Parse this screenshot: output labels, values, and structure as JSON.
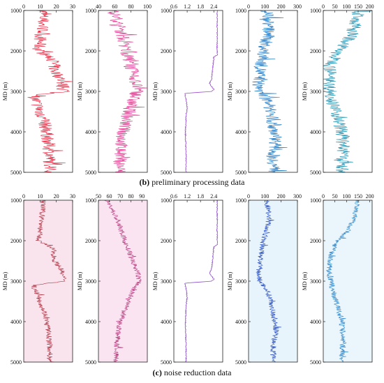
{
  "captions": [
    {
      "letter": "(b)",
      "text": " preliminary processing data"
    },
    {
      "letter": "(c)",
      "text": " noise reduction data"
    }
  ],
  "y_axis_label": "MD (m)",
  "chart_data": [
    {
      "group": "b",
      "type": "line",
      "y_ticks": [
        1000,
        2000,
        3000,
        4000,
        5000
      ],
      "ylim": [
        1000,
        5000
      ],
      "panels": [
        {
          "color": "#e8253f",
          "fill": "#ffffff",
          "x_ticks": [
            0,
            10,
            20,
            30
          ],
          "xlim": [
            0,
            30
          ],
          "trend": [
            [
              1000,
              12
            ],
            [
              1500,
              11
            ],
            [
              2000,
              9
            ],
            [
              2200,
              18
            ],
            [
              2500,
              19
            ],
            [
              2600,
              21
            ],
            [
              2700,
              23
            ],
            [
              2900,
              24
            ],
            [
              3000,
              26
            ],
            [
              3100,
              6
            ],
            [
              3400,
              9
            ],
            [
              3800,
              13
            ],
            [
              4200,
              15
            ],
            [
              4600,
              16
            ],
            [
              5000,
              16
            ]
          ]
        },
        {
          "color": "#e0388f",
          "fill": "#ffffff",
          "x_ticks": [
            40,
            60,
            80,
            100
          ],
          "xlim": [
            40,
            100
          ],
          "trend": [
            [
              1000,
              58
            ],
            [
              1300,
              64
            ],
            [
              1600,
              69
            ],
            [
              2000,
              74
            ],
            [
              2400,
              80
            ],
            [
              2800,
              86
            ],
            [
              3000,
              88
            ],
            [
              3200,
              82
            ],
            [
              3600,
              76
            ],
            [
              4000,
              70
            ],
            [
              4500,
              67
            ],
            [
              5000,
              66
            ]
          ]
        },
        {
          "color": "#9b4fcf",
          "fill": "#ffffff",
          "x_ticks": [
            0.6,
            1.2,
            1.8,
            2.4
          ],
          "xlim": [
            0.6,
            2.8
          ],
          "trend": [
            [
              1000,
              2.55
            ],
            [
              2100,
              2.55
            ],
            [
              2150,
              2.4
            ],
            [
              2700,
              2.3
            ],
            [
              2800,
              2.2
            ],
            [
              2950,
              2.4
            ],
            [
              3000,
              2.3
            ],
            [
              3050,
              1.1
            ],
            [
              3200,
              1.15
            ],
            [
              3400,
              1.2
            ],
            [
              3600,
              1.15
            ],
            [
              4000,
              1.12
            ],
            [
              4600,
              1.15
            ],
            [
              5000,
              1.15
            ]
          ]
        },
        {
          "color": "#1f79c4",
          "fill": "#ffffff",
          "x_ticks": [
            0,
            100,
            200,
            300
          ],
          "xlim": [
            0,
            300
          ],
          "trend": [
            [
              1000,
              110
            ],
            [
              1300,
              125
            ],
            [
              1600,
              120
            ],
            [
              2000,
              90
            ],
            [
              2400,
              75
            ],
            [
              2800,
              60
            ],
            [
              3000,
              70
            ],
            [
              3200,
              110
            ],
            [
              3500,
              140
            ],
            [
              3800,
              150
            ],
            [
              4200,
              170
            ],
            [
              4600,
              150
            ],
            [
              5000,
              160
            ]
          ]
        },
        {
          "color": "#1f93b3",
          "fill": "#ffffff",
          "x_ticks": [
            0,
            50,
            100,
            150,
            200
          ],
          "xlim": [
            0,
            210
          ],
          "trend": [
            [
              1000,
              150
            ],
            [
              1300,
              140
            ],
            [
              1600,
              120
            ],
            [
              1800,
              100
            ],
            [
              2000,
              60
            ],
            [
              2400,
              30
            ],
            [
              2800,
              25
            ],
            [
              3200,
              40
            ],
            [
              3600,
              60
            ],
            [
              4000,
              80
            ],
            [
              4500,
              85
            ],
            [
              5000,
              80
            ]
          ]
        }
      ]
    },
    {
      "group": "c",
      "type": "line",
      "y_ticks": [
        1000,
        2000,
        3000,
        4000,
        5000
      ],
      "ylim": [
        1000,
        5000
      ],
      "panels": [
        {
          "color": "#b03848",
          "fill": "#f9e4ee",
          "x_ticks": [
            0,
            10,
            20,
            30
          ],
          "xlim": [
            0,
            30
          ],
          "trend": [
            [
              1000,
              12
            ],
            [
              1500,
              11
            ],
            [
              2000,
              9
            ],
            [
              2200,
              18
            ],
            [
              2500,
              19
            ],
            [
              2600,
              21
            ],
            [
              2700,
              23
            ],
            [
              2900,
              24
            ],
            [
              3000,
              26
            ],
            [
              3100,
              6
            ],
            [
              3400,
              9
            ],
            [
              3800,
              13
            ],
            [
              4200,
              15
            ],
            [
              4600,
              16
            ],
            [
              5000,
              16
            ]
          ]
        },
        {
          "color": "#b83d7f",
          "fill": "#fae4f2",
          "x_ticks": [
            50,
            60,
            70,
            80,
            90
          ],
          "xlim": [
            50,
            95
          ],
          "trend": [
            [
              1000,
              58
            ],
            [
              1300,
              64
            ],
            [
              1600,
              69
            ],
            [
              2000,
              74
            ],
            [
              2400,
              80
            ],
            [
              2800,
              86
            ],
            [
              3000,
              88
            ],
            [
              3200,
              82
            ],
            [
              3600,
              76
            ],
            [
              4000,
              70
            ],
            [
              4500,
              67
            ],
            [
              5000,
              66
            ]
          ]
        },
        {
          "color": "#8a4fc4",
          "fill": "#ffffff",
          "x_ticks": [
            0.6,
            1.2,
            1.8,
            2.4
          ],
          "xlim": [
            0.6,
            2.8
          ],
          "trend": [
            [
              1000,
              2.55
            ],
            [
              2100,
              2.55
            ],
            [
              2150,
              2.4
            ],
            [
              2700,
              2.3
            ],
            [
              2800,
              2.2
            ],
            [
              2950,
              2.4
            ],
            [
              3000,
              2.3
            ],
            [
              3050,
              1.1
            ],
            [
              3200,
              1.15
            ],
            [
              3400,
              1.2
            ],
            [
              3600,
              1.15
            ],
            [
              4000,
              1.12
            ],
            [
              4600,
              1.15
            ],
            [
              5000,
              1.15
            ]
          ]
        },
        {
          "color": "#2a4fc2",
          "fill": "#e8f4fb",
          "x_ticks": [
            0,
            100,
            200,
            300
          ],
          "xlim": [
            0,
            300
          ],
          "trend": [
            [
              1000,
              110
            ],
            [
              1300,
              125
            ],
            [
              1600,
              120
            ],
            [
              2000,
              90
            ],
            [
              2400,
              75
            ],
            [
              2800,
              60
            ],
            [
              3000,
              70
            ],
            [
              3200,
              110
            ],
            [
              3500,
              140
            ],
            [
              3800,
              150
            ],
            [
              4200,
              170
            ],
            [
              4600,
              150
            ],
            [
              5000,
              160
            ]
          ]
        },
        {
          "color": "#2f86c8",
          "fill": "#eaf6fb",
          "x_ticks": [
            0,
            50,
            100,
            150,
            200
          ],
          "xlim": [
            0,
            210
          ],
          "trend": [
            [
              1000,
              150
            ],
            [
              1300,
              140
            ],
            [
              1600,
              120
            ],
            [
              1800,
              100
            ],
            [
              2000,
              60
            ],
            [
              2400,
              30
            ],
            [
              2800,
              25
            ],
            [
              3200,
              40
            ],
            [
              3600,
              60
            ],
            [
              4000,
              80
            ],
            [
              4500,
              85
            ],
            [
              5000,
              80
            ]
          ]
        }
      ]
    }
  ]
}
